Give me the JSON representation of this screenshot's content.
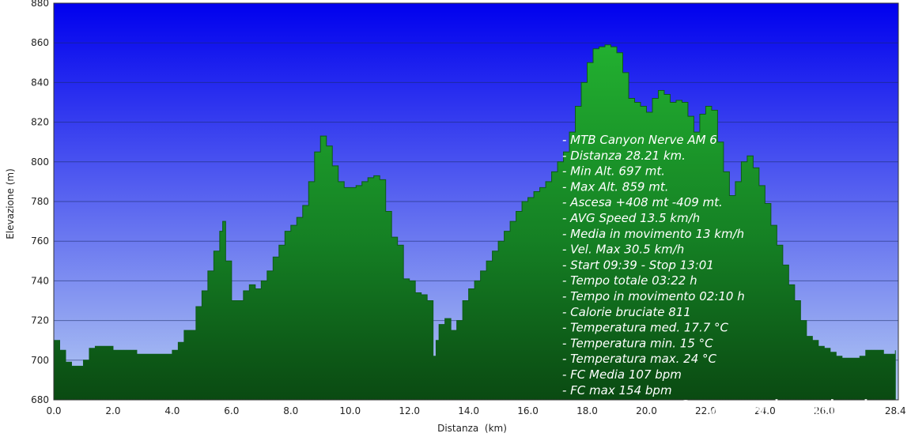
{
  "chart_data": {
    "type": "area",
    "xlabel": "Distanza  (km)",
    "ylabel": "Elevazione (m)",
    "xlim": [
      0,
      28.5
    ],
    "ylim": [
      680,
      880
    ],
    "x_ticks": [
      "0.0",
      "2.0",
      "4.0",
      "6.0",
      "8.0",
      "10.0",
      "12.0",
      "14.0",
      "16.0",
      "18.0",
      "20.0",
      "22.0",
      "24.0",
      "26.0",
      "28.4"
    ],
    "x_tick_values": [
      0,
      2,
      4,
      6,
      8,
      10,
      12,
      14,
      16,
      18,
      20,
      22,
      24,
      26,
      28.4
    ],
    "y_ticks": [
      "680",
      "700",
      "720",
      "740",
      "760",
      "780",
      "800",
      "820",
      "840",
      "860",
      "880"
    ],
    "y_tick_values": [
      680,
      700,
      720,
      740,
      760,
      780,
      800,
      820,
      840,
      860,
      880
    ],
    "grid": true,
    "background_gradient": [
      "#0000ee",
      "#b0c8f0"
    ],
    "fill_gradient": [
      "#1a9a2a",
      "#0a4a12"
    ],
    "series": [
      {
        "x": [
          0.0,
          0.2,
          0.4,
          0.6,
          0.8,
          1.0,
          1.2,
          1.4,
          1.8,
          2.0,
          2.6,
          2.8,
          3.4,
          3.8,
          4.0,
          4.2,
          4.4,
          4.8,
          5.0,
          5.2,
          5.4,
          5.6,
          5.7,
          5.8,
          6.0,
          6.2,
          6.4,
          6.6,
          6.8,
          7.0,
          7.2,
          7.4,
          7.6,
          7.8,
          8.0,
          8.2,
          8.4,
          8.6,
          8.8,
          9.0,
          9.2,
          9.4,
          9.6,
          9.8,
          10.0,
          10.2,
          10.4,
          10.6,
          10.8,
          11.0,
          11.2,
          11.4,
          11.6,
          11.8,
          12.0,
          12.2,
          12.4,
          12.6,
          12.8,
          12.9,
          13.0,
          13.2,
          13.4,
          13.6,
          13.8,
          14.0,
          14.2,
          14.4,
          14.6,
          14.8,
          15.0,
          15.2,
          15.4,
          15.6,
          15.8,
          16.0,
          16.2,
          16.4,
          16.6,
          16.8,
          17.0,
          17.2,
          17.4,
          17.6,
          17.8,
          18.0,
          18.2,
          18.4,
          18.6,
          18.8,
          19.0,
          19.2,
          19.4,
          19.6,
          19.8,
          20.0,
          20.2,
          20.4,
          20.6,
          20.8,
          21.0,
          21.2,
          21.4,
          21.6,
          21.8,
          22.0,
          22.2,
          22.4,
          22.6,
          22.8,
          23.0,
          23.2,
          23.4,
          23.6,
          23.8,
          24.0,
          24.2,
          24.4,
          24.6,
          24.8,
          25.0,
          25.2,
          25.4,
          25.6,
          25.8,
          26.0,
          26.2,
          26.4,
          26.6,
          26.8,
          27.0,
          27.2,
          27.4,
          27.6,
          27.8,
          28.0,
          28.2,
          28.4
        ],
        "y": [
          710,
          705,
          699,
          697,
          697,
          700,
          706,
          707,
          707,
          705,
          705,
          703,
          703,
          703,
          705,
          709,
          715,
          727,
          735,
          745,
          755,
          765,
          770,
          750,
          730,
          730,
          735,
          738,
          736,
          740,
          745,
          752,
          758,
          765,
          768,
          772,
          778,
          790,
          805,
          813,
          808,
          798,
          790,
          787,
          787,
          788,
          790,
          792,
          793,
          791,
          775,
          762,
          758,
          741,
          740,
          734,
          733,
          730,
          702,
          710,
          718,
          721,
          715,
          720,
          730,
          736,
          740,
          745,
          750,
          755,
          760,
          765,
          770,
          775,
          780,
          782,
          785,
          787,
          790,
          795,
          800,
          805,
          815,
          828,
          840,
          850,
          857,
          858,
          859,
          858,
          855,
          845,
          832,
          830,
          828,
          825,
          832,
          836,
          834,
          830,
          831,
          830,
          823,
          815,
          824,
          828,
          826,
          810,
          795,
          783,
          790,
          800,
          803,
          797,
          788,
          779,
          768,
          758,
          748,
          738,
          730,
          720,
          712,
          710,
          707,
          706,
          704,
          702,
          701,
          701,
          701,
          702,
          705,
          705,
          705,
          703,
          703,
          705
        ]
      }
    ]
  },
  "stats": [
    "- MTB Canyon Nerve AM 6",
    "- Distanza 28.21 km.",
    "- Min Alt. 697 mt.",
    "- Max Alt. 859 mt.",
    "- Ascesa +408 mt -409 mt.",
    "- AVG Speed 13.5 km/h",
    "- Media in movimento 13 km/h",
    "- Vel. Max 30.5 km/h",
    "- Start 09:39 - Stop 13:01",
    "- Tempo totale 03:22 h",
    "- Tempo in movimento 02:10 h",
    "- Calorie bruciate 811",
    "- Temperatura med. 17.7 °C",
    "- Temperatura min. 15 °C",
    "- Temperatura max. 24 °C",
    "- FC Media 107 bpm",
    "- FC max 154 bpm"
  ],
  "watermark": "© www.bandw.it"
}
